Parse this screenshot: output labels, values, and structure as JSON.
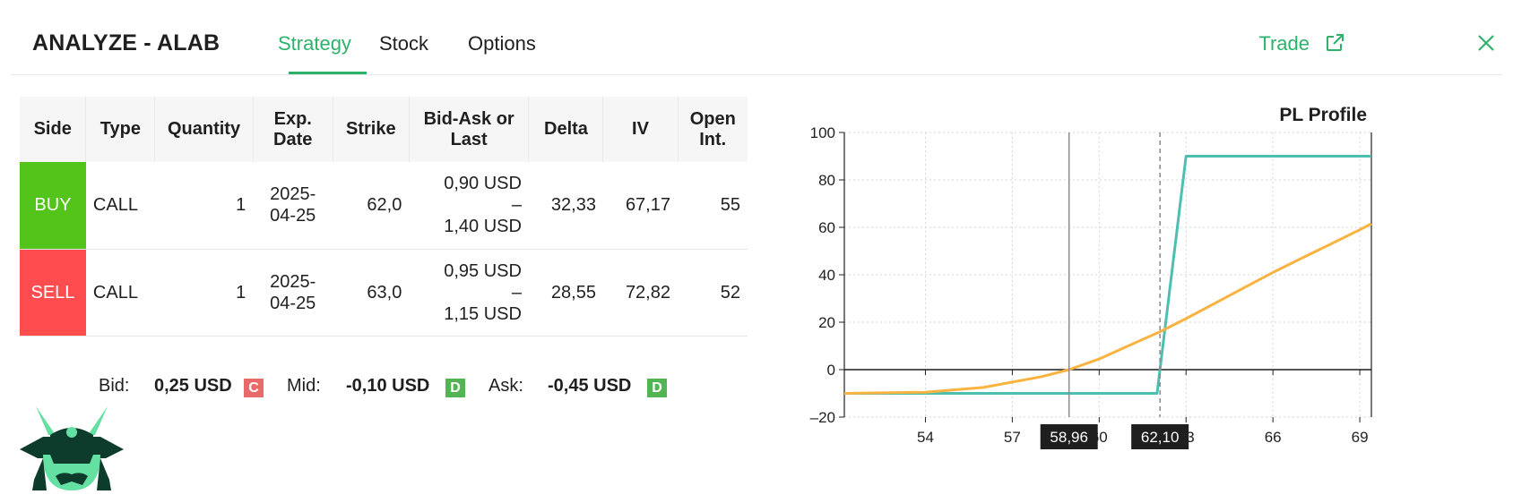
{
  "header": {
    "title": "ANALYZE - ALAB",
    "tabs": [
      {
        "label": "Strategy",
        "active": true
      },
      {
        "label": "Stock",
        "active": false
      },
      {
        "label": "Options",
        "active": false
      }
    ],
    "trade_label": "Trade",
    "accent_color": "#2cb26a"
  },
  "table": {
    "headers": {
      "side": "Side",
      "type": "Type",
      "quantity": "Quantity",
      "exp_date_1": "Exp.",
      "exp_date_2": "Date",
      "strike": "Strike",
      "bidask_1": "Bid-Ask or",
      "bidask_2": "Last",
      "delta": "Delta",
      "iv": "IV",
      "open_int_1": "Open",
      "open_int_2": "Int."
    },
    "rows": [
      {
        "side": "BUY",
        "side_color": "#52c41a",
        "type": "CALL",
        "quantity": "1",
        "exp_1": "2025-",
        "exp_2": "04-25",
        "strike": "62,0",
        "bid": "0,90 USD",
        "dash": "–",
        "ask": "1,40 USD",
        "delta": "32,33",
        "iv": "67,17",
        "open_int": "55"
      },
      {
        "side": "SELL",
        "side_color": "#ff4d4f",
        "type": "CALL",
        "quantity": "1",
        "exp_1": "2025-",
        "exp_2": "04-25",
        "strike": "63,0",
        "bid": "0,95 USD",
        "dash": "–",
        "ask": "1,15 USD",
        "delta": "28,55",
        "iv": "72,82",
        "open_int": "52"
      }
    ]
  },
  "summary": {
    "bid_label": "Bid:",
    "bid_value": "0,25 USD",
    "bid_badge": "C",
    "mid_label": "Mid:",
    "mid_value": "-0,10 USD",
    "mid_badge": "D",
    "ask_label": "Ask:",
    "ask_value": "-0,45 USD",
    "ask_badge": "D"
  },
  "chart_data": {
    "type": "line",
    "title": "PL Profile",
    "xlim": [
      51.2,
      69.4
    ],
    "ylim": [
      -20,
      100
    ],
    "x_ticks": [
      54,
      57,
      60,
      63,
      66,
      69
    ],
    "y_ticks": [
      -20,
      0,
      20,
      40,
      60,
      80,
      100
    ],
    "grid": true,
    "series": [
      {
        "color": "#4dbfb1",
        "points": [
          [
            51.2,
            -10
          ],
          [
            62.0,
            -10
          ],
          [
            63.0,
            90
          ],
          [
            69.4,
            90
          ]
        ]
      },
      {
        "color": "#f9b341",
        "points": [
          [
            51.2,
            -10
          ],
          [
            54,
            -9.5
          ],
          [
            56,
            -7.5
          ],
          [
            58,
            -3
          ],
          [
            58.96,
            0
          ],
          [
            60,
            4.5
          ],
          [
            61,
            10
          ],
          [
            62.1,
            16
          ],
          [
            63,
            21.5
          ],
          [
            64,
            28
          ],
          [
            65,
            34.5
          ],
          [
            66,
            41
          ],
          [
            67,
            47
          ],
          [
            68,
            53
          ],
          [
            69,
            59
          ],
          [
            69.4,
            61.5
          ]
        ]
      }
    ],
    "markers": [
      {
        "x": 58.96,
        "label": "58,96",
        "style": "solid"
      },
      {
        "x": 62.1,
        "label": "62,10",
        "style": "dashed"
      }
    ]
  }
}
